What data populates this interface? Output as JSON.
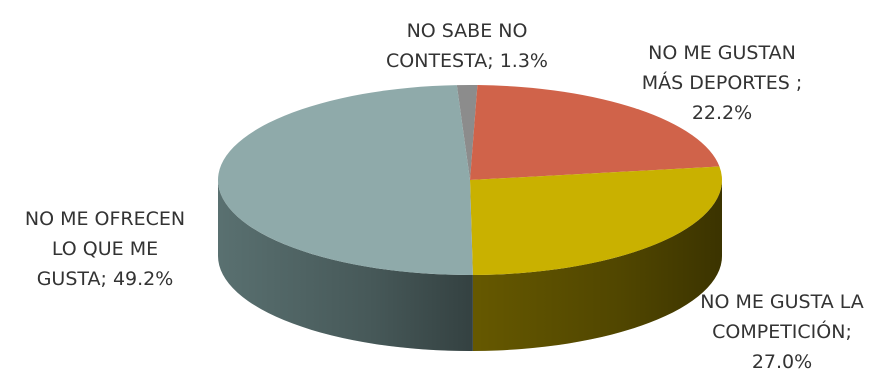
{
  "chart_data": {
    "type": "pie",
    "title": "",
    "slices": [
      {
        "label_lines": [
          "NO SABE NO",
          "CONTESTA; 1.3%"
        ],
        "category": "NO SABE NO CONTESTA",
        "value": 1.3,
        "color": "#8c8c8c",
        "side_color": "#555555"
      },
      {
        "label_lines": [
          "NO ME GUSTAN",
          "MÁS DEPORTES ;",
          "22.2%"
        ],
        "category": "NO ME GUSTAN MÁS DEPORTES",
        "value": 22.2,
        "color": "#d0634a",
        "side_color": "#8a3a27"
      },
      {
        "label_lines": [
          "NO ME GUSTA LA",
          "COMPETICIÓN;",
          "27.0%"
        ],
        "category": "NO ME GUSTA LA COMPETICIÓN",
        "value": 27.0,
        "color": "#c9b100",
        "side_color": "#6b5d00"
      },
      {
        "label_lines": [
          "NO ME OFRECEN",
          "LO QUE ME",
          "GUSTA; 49.2%"
        ],
        "category": "NO ME OFRECEN LO QUE ME GUSTA",
        "value": 49.2,
        "color": "#8faaaa",
        "side_color": "#5e7676"
      }
    ],
    "start_angle_deg": -93,
    "direction": "clockwise",
    "style": "3d-pie"
  }
}
